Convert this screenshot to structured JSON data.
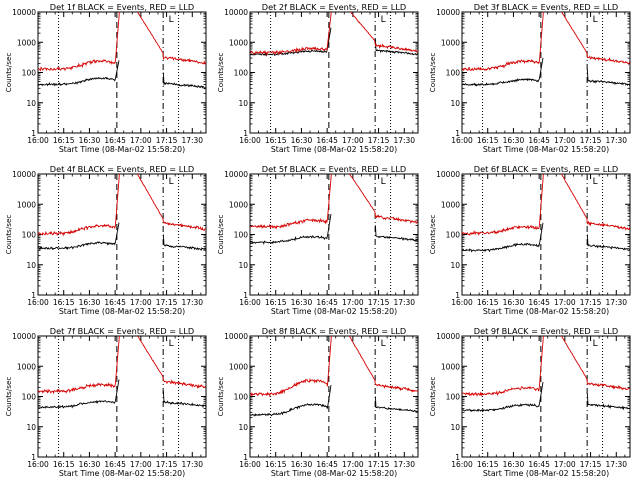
{
  "colors": {
    "events": "#000000",
    "lld": "#d40000",
    "axes": "#000000",
    "background": "#ffffff"
  },
  "chart_data": [
    {
      "type": "line",
      "title": "Det 1f BLACK = Events, RED = LLD",
      "xlabel": "Start Time (08-Mar-02 15:58:20)",
      "ylabel": "Counts/sec",
      "yscale": "log",
      "ylim": [
        1,
        10000
      ],
      "xticks": [
        "16:00",
        "16:15",
        "16:30",
        "16:45",
        "17:00",
        "17:15",
        "17:30"
      ],
      "yticks": [
        "1",
        "10",
        "100",
        "1000",
        "10000"
      ],
      "legend_marker": "L",
      "dotted_lines_at": [
        "16:12",
        "17:22"
      ],
      "dashed_line_at": "16:46",
      "dashdot_line_at": "17:13",
      "series": [
        {
          "color": "black",
          "baseline": 40,
          "pre_flare_peak": 60,
          "post_drop": 40
        },
        {
          "color": "red",
          "baseline": 130,
          "pre_flare_peak": 220,
          "peak": 12000,
          "post_drop": 200
        }
      ]
    },
    {
      "type": "line",
      "title": "Det 2f BLACK = Events, RED = LLD",
      "xlabel": "Start Time (08-Mar-02 15:58:20)",
      "ylabel": "Counts/sec",
      "yscale": "log",
      "ylim": [
        1,
        10000
      ],
      "xticks": [
        "16:00",
        "16:15",
        "16:30",
        "16:45",
        "17:00",
        "17:15",
        "17:30"
      ],
      "yticks": [
        "1",
        "10",
        "100",
        "1000",
        "10000"
      ],
      "legend_marker": "L",
      "dotted_lines_at": [
        "16:12",
        "17:22"
      ],
      "dashed_line_at": "16:46",
      "dashdot_line_at": "17:13",
      "series": [
        {
          "color": "black",
          "baseline": 400,
          "pre_flare_peak": 500,
          "post_drop": 500
        },
        {
          "color": "red",
          "baseline": 450,
          "pre_flare_peak": 600,
          "peak": 12000,
          "post_drop": 500
        }
      ]
    },
    {
      "type": "line",
      "title": "Det 3f BLACK = Events, RED = LLD",
      "xlabel": "Start Time (08-Mar-02 15:58:20)",
      "ylabel": "Counts/sec",
      "yscale": "log",
      "ylim": [
        1,
        10000
      ],
      "xticks": [
        "16:00",
        "16:15",
        "16:30",
        "16:45",
        "17:00",
        "17:15",
        "17:30"
      ],
      "yticks": [
        "1",
        "10",
        "100",
        "1000",
        "10000"
      ],
      "legend_marker": "L",
      "dotted_lines_at": [
        "16:12",
        "17:22"
      ],
      "dashed_line_at": "16:46",
      "dashdot_line_at": "17:13",
      "series": [
        {
          "color": "black",
          "baseline": 40,
          "pre_flare_peak": 55,
          "post_drop": 50
        },
        {
          "color": "red",
          "baseline": 130,
          "pre_flare_peak": 220,
          "peak": 12000,
          "post_drop": 200
        }
      ]
    },
    {
      "type": "line",
      "title": "Det 4f BLACK = Events, RED = LLD",
      "xlabel": "Start Time (08-Mar-02 15:58:20)",
      "ylabel": "Counts/sec",
      "yscale": "log",
      "ylim": [
        1,
        10000
      ],
      "xticks": [
        "16:00",
        "16:15",
        "16:30",
        "16:45",
        "17:00",
        "17:15",
        "17:30"
      ],
      "yticks": [
        "1",
        "10",
        "100",
        "1000",
        "10000"
      ],
      "legend_marker": "L",
      "dotted_lines_at": [
        "16:12",
        "17:22"
      ],
      "dashed_line_at": "16:46",
      "dashdot_line_at": "17:13",
      "series": [
        {
          "color": "black",
          "baseline": 35,
          "pre_flare_peak": 50,
          "post_drop": 40
        },
        {
          "color": "red",
          "baseline": 110,
          "pre_flare_peak": 180,
          "peak": 12000,
          "post_drop": 150
        }
      ]
    },
    {
      "type": "line",
      "title": "Det 5f BLACK = Events, RED = LLD",
      "xlabel": "Start Time (08-Mar-02 15:58:20)",
      "ylabel": "Counts/sec",
      "yscale": "log",
      "ylim": [
        1,
        10000
      ],
      "xticks": [
        "16:00",
        "16:15",
        "16:30",
        "16:45",
        "17:00",
        "17:15",
        "17:30"
      ],
      "yticks": [
        "1",
        "10",
        "100",
        "1000",
        "10000"
      ],
      "legend_marker": "L",
      "dotted_lines_at": [
        "16:12",
        "17:22"
      ],
      "dashed_line_at": "16:46",
      "dashdot_line_at": "17:13",
      "series": [
        {
          "color": "black",
          "baseline": 55,
          "pre_flare_peak": 80,
          "post_drop": 80
        },
        {
          "color": "red",
          "baseline": 180,
          "pre_flare_peak": 280,
          "peak": 12000,
          "post_drop": 250
        }
      ]
    },
    {
      "type": "line",
      "title": "Det 6f BLACK = Events, RED = LLD",
      "xlabel": "Start Time (08-Mar-02 15:58:20)",
      "ylabel": "Counts/sec",
      "yscale": "log",
      "ylim": [
        1,
        10000
      ],
      "xticks": [
        "16:00",
        "16:15",
        "16:30",
        "16:45",
        "17:00",
        "17:15",
        "17:30"
      ],
      "yticks": [
        "1",
        "10",
        "100",
        "1000",
        "10000"
      ],
      "legend_marker": "L",
      "dotted_lines_at": [
        "16:12",
        "17:22"
      ],
      "dashed_line_at": "16:46",
      "dashdot_line_at": "17:13",
      "series": [
        {
          "color": "black",
          "baseline": 30,
          "pre_flare_peak": 45,
          "post_drop": 40
        },
        {
          "color": "red",
          "baseline": 110,
          "pre_flare_peak": 170,
          "peak": 12000,
          "post_drop": 150
        }
      ]
    },
    {
      "type": "line",
      "title": "Det 7f BLACK = Events, RED = LLD",
      "xlabel": "Start Time (08-Mar-02 15:58:20)",
      "ylabel": "Counts/sec",
      "yscale": "log",
      "ylim": [
        1,
        10000
      ],
      "xticks": [
        "16:00",
        "16:15",
        "16:30",
        "16:45",
        "17:00",
        "17:15",
        "17:30"
      ],
      "yticks": [
        "1",
        "10",
        "100",
        "1000",
        "10000"
      ],
      "legend_marker": "L",
      "dotted_lines_at": [
        "16:12",
        "17:22"
      ],
      "dashed_line_at": "16:46",
      "dashdot_line_at": "17:13",
      "series": [
        {
          "color": "black",
          "baseline": 45,
          "pre_flare_peak": 65,
          "post_drop": 60
        },
        {
          "color": "red",
          "baseline": 150,
          "pre_flare_peak": 230,
          "peak": 12000,
          "post_drop": 200
        }
      ]
    },
    {
      "type": "line",
      "title": "Det 8f BLACK = Events, RED = LLD",
      "xlabel": "Start Time (08-Mar-02 15:58:20)",
      "ylabel": "Counts/sec",
      "yscale": "log",
      "ylim": [
        1,
        10000
      ],
      "xticks": [
        "16:00",
        "16:15",
        "16:30",
        "16:45",
        "17:00",
        "17:15",
        "17:30"
      ],
      "yticks": [
        "1",
        "10",
        "100",
        "1000",
        "10000"
      ],
      "legend_marker": "L",
      "dotted_lines_at": [
        "16:12",
        "17:22"
      ],
      "dashed_line_at": "16:46",
      "dashdot_line_at": "17:13",
      "series": [
        {
          "color": "black",
          "baseline": 25,
          "pre_flare_peak": 50,
          "post_drop": 40
        },
        {
          "color": "red",
          "baseline": 120,
          "pre_flare_peak": 300,
          "peak": 12000,
          "post_drop": 150
        }
      ]
    },
    {
      "type": "line",
      "title": "Det 9f BLACK = Events, RED = LLD",
      "xlabel": "Start Time (08-Mar-02 15:58:20)",
      "ylabel": "Counts/sec",
      "yscale": "log",
      "ylim": [
        1,
        10000
      ],
      "xticks": [
        "16:00",
        "16:15",
        "16:30",
        "16:45",
        "17:00",
        "17:15",
        "17:30"
      ],
      "yticks": [
        "1",
        "10",
        "100",
        "1000",
        "10000"
      ],
      "legend_marker": "L",
      "dotted_lines_at": [
        "16:12",
        "17:22"
      ],
      "dashed_line_at": "16:46",
      "dashdot_line_at": "17:13",
      "series": [
        {
          "color": "black",
          "baseline": 35,
          "pre_flare_peak": 50,
          "post_drop": 50
        },
        {
          "color": "red",
          "baseline": 120,
          "pre_flare_peak": 180,
          "peak": 12000,
          "post_drop": 170
        }
      ]
    }
  ]
}
